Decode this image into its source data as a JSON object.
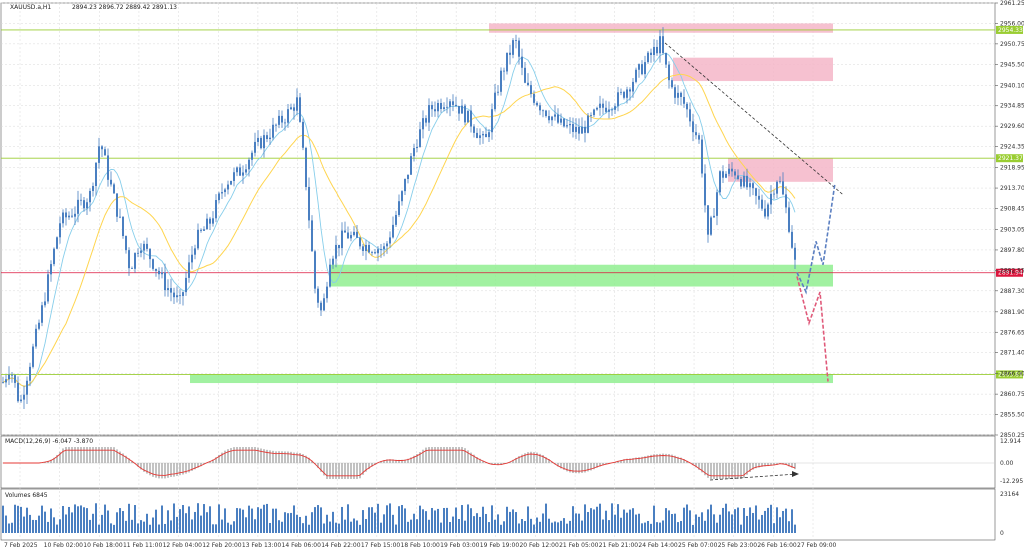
{
  "header": {
    "symbol": "XAUUSD.a,H1",
    "ohlc": "2894.23 2896.72 2889.42 2891.13"
  },
  "indicators": {
    "macd_label": "MACD(12,26,9) -6.047 -3.870",
    "volume_label": "Volumes 6845"
  },
  "chart_data": {
    "type": "candlestick",
    "price_ticks": [
      "2961.25",
      "2956.00",
      "2950.75",
      "2945.50",
      "2940.10",
      "2934.85",
      "2929.60",
      "2924.35",
      "2918.95",
      "2913.70",
      "2908.45",
      "2903.05",
      "2897.80",
      "2892.55",
      "2887.30",
      "2881.90",
      "2876.65",
      "2871.40",
      "2866.00",
      "2860.75",
      "2855.50",
      "2850.25"
    ],
    "ylim": [
      2850.25,
      2961.25
    ],
    "time_labels": [
      "7 Feb 2025",
      "10 Feb 02:00",
      "10 Feb 18:00",
      "11 Feb 11:00",
      "12 Feb 04:00",
      "12 Feb 20:00",
      "13 Feb 13:00",
      "14 Feb 06:00",
      "14 Feb 22:00",
      "17 Feb 15:00",
      "18 Feb 10:00",
      "19 Feb 03:00",
      "19 Feb 19:00",
      "20 Feb 12:00",
      "21 Feb 05:00",
      "21 Feb 21:00",
      "24 Feb 14:00",
      "25 Feb 07:00",
      "25 Feb 23:00",
      "26 Feb 16:00",
      "27 Feb 09:00"
    ],
    "key_levels": [
      {
        "price": 2954.33,
        "label": "2954.33",
        "color": "#9acd32"
      },
      {
        "price": 2921.37,
        "label": "2921.37",
        "color": "#9acd32"
      },
      {
        "price": 2891.94,
        "label": "2891.94",
        "color": "#dc143c"
      },
      {
        "price": 2865.81,
        "label": "2865.81",
        "color": "#9acd32"
      }
    ],
    "macd_ticks": [
      "12.914",
      "0.00",
      "-12.295"
    ],
    "volume_ticks": [
      "23164",
      "0"
    ],
    "colors": {
      "candle": "#4a7fc1",
      "supply_zone": "#f4b6c8",
      "demand_zone": "#90ee90",
      "ma_fast": "#87ceeb",
      "ma_slow": "#ffd54f",
      "macd_hist": "#a9a9a9",
      "macd_signal": "#e53935",
      "volume": "#4a7fc1",
      "forecast_up": "#5b7fc1",
      "forecast_down": "#e05a7a"
    }
  }
}
